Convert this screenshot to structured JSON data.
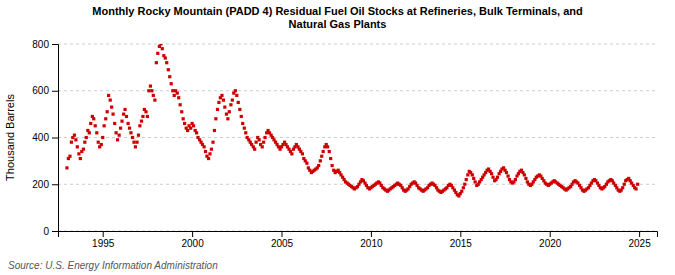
{
  "chart_data": {
    "type": "scatter",
    "title": "Monthly Rocky Mountain (PADD 4) Residual Fuel Oil Stocks at Refineries, Bulk Terminals, and\nNatural Gas Plants",
    "ylabel": "Thousand Barrels",
    "annotations": [
      "Source: U.S. Energy Information Administration"
    ],
    "color": "#cc0000",
    "marker": "square",
    "grid": "y",
    "xlim": [
      1992.5,
      2026.0
    ],
    "xticks": [
      1995,
      2000,
      2005,
      2010,
      2015,
      2020,
      2025
    ],
    "ylim": [
      0,
      800
    ],
    "yticks": [
      0,
      200,
      400,
      600,
      800
    ],
    "x": [
      1993.0,
      1993.08,
      1993.17,
      1993.25,
      1993.33,
      1993.42,
      1993.5,
      1993.58,
      1993.67,
      1993.75,
      1993.83,
      1993.92,
      1994.0,
      1994.08,
      1994.17,
      1994.25,
      1994.33,
      1994.42,
      1994.5,
      1994.58,
      1994.67,
      1994.75,
      1994.83,
      1994.92,
      1995.0,
      1995.08,
      1995.17,
      1995.25,
      1995.33,
      1995.42,
      1995.5,
      1995.58,
      1995.67,
      1995.75,
      1995.83,
      1995.92,
      1996.0,
      1996.08,
      1996.17,
      1996.25,
      1996.33,
      1996.42,
      1996.5,
      1996.58,
      1996.67,
      1996.75,
      1996.83,
      1996.92,
      1997.0,
      1997.08,
      1997.17,
      1997.25,
      1997.33,
      1997.42,
      1997.5,
      1997.58,
      1997.67,
      1997.75,
      1997.83,
      1997.92,
      1998.0,
      1998.08,
      1998.17,
      1998.25,
      1998.33,
      1998.42,
      1998.5,
      1998.58,
      1998.67,
      1998.75,
      1998.83,
      1998.92,
      1999.0,
      1999.08,
      1999.17,
      1999.25,
      1999.33,
      1999.42,
      1999.5,
      1999.58,
      1999.67,
      1999.75,
      1999.83,
      1999.92,
      2000.0,
      2000.08,
      2000.17,
      2000.25,
      2000.33,
      2000.42,
      2000.5,
      2000.58,
      2000.67,
      2000.75,
      2000.83,
      2000.92,
      2001.0,
      2001.08,
      2001.17,
      2001.25,
      2001.33,
      2001.42,
      2001.5,
      2001.58,
      2001.67,
      2001.75,
      2001.83,
      2001.92,
      2002.0,
      2002.08,
      2002.17,
      2002.25,
      2002.33,
      2002.42,
      2002.5,
      2002.58,
      2002.67,
      2002.75,
      2002.83,
      2002.92,
      2003.0,
      2003.08,
      2003.17,
      2003.25,
      2003.33,
      2003.42,
      2003.5,
      2003.58,
      2003.67,
      2003.75,
      2003.83,
      2003.92,
      2004.0,
      2004.08,
      2004.17,
      2004.25,
      2004.33,
      2004.42,
      2004.5,
      2004.58,
      2004.67,
      2004.75,
      2004.83,
      2004.92,
      2005.0,
      2005.08,
      2005.17,
      2005.25,
      2005.33,
      2005.42,
      2005.5,
      2005.58,
      2005.67,
      2005.75,
      2005.83,
      2005.92,
      2006.0,
      2006.08,
      2006.17,
      2006.25,
      2006.33,
      2006.42,
      2006.5,
      2006.58,
      2006.67,
      2006.75,
      2006.83,
      2006.92,
      2007.0,
      2007.08,
      2007.17,
      2007.25,
      2007.33,
      2007.42,
      2007.5,
      2007.58,
      2007.67,
      2007.75,
      2007.83,
      2007.92,
      2008.0,
      2008.08,
      2008.17,
      2008.25,
      2008.33,
      2008.42,
      2008.5,
      2008.58,
      2008.67,
      2008.75,
      2008.83,
      2008.92,
      2009.0,
      2009.08,
      2009.17,
      2009.25,
      2009.33,
      2009.42,
      2009.5,
      2009.58,
      2009.67,
      2009.75,
      2009.83,
      2009.92,
      2010.0,
      2010.08,
      2010.17,
      2010.25,
      2010.33,
      2010.42,
      2010.5,
      2010.58,
      2010.67,
      2010.75,
      2010.83,
      2010.92,
      2011.0,
      2011.08,
      2011.17,
      2011.25,
      2011.33,
      2011.42,
      2011.5,
      2011.58,
      2011.67,
      2011.75,
      2011.83,
      2011.92,
      2012.0,
      2012.08,
      2012.17,
      2012.25,
      2012.33,
      2012.42,
      2012.5,
      2012.58,
      2012.67,
      2012.75,
      2012.83,
      2012.92,
      2013.0,
      2013.08,
      2013.17,
      2013.25,
      2013.33,
      2013.42,
      2013.5,
      2013.58,
      2013.67,
      2013.75,
      2013.83,
      2013.92,
      2014.0,
      2014.08,
      2014.17,
      2014.25,
      2014.33,
      2014.42,
      2014.5,
      2014.58,
      2014.67,
      2014.75,
      2014.83,
      2014.92,
      2015.0,
      2015.08,
      2015.17,
      2015.25,
      2015.33,
      2015.42,
      2015.5,
      2015.58,
      2015.67,
      2015.75,
      2015.83,
      2015.92,
      2016.0,
      2016.08,
      2016.17,
      2016.25,
      2016.33,
      2016.42,
      2016.5,
      2016.58,
      2016.67,
      2016.75,
      2016.83,
      2016.92,
      2017.0,
      2017.08,
      2017.17,
      2017.25,
      2017.33,
      2017.42,
      2017.5,
      2017.58,
      2017.67,
      2017.75,
      2017.83,
      2017.92,
      2018.0,
      2018.08,
      2018.17,
      2018.25,
      2018.33,
      2018.42,
      2018.5,
      2018.58,
      2018.67,
      2018.75,
      2018.83,
      2018.92,
      2019.0,
      2019.08,
      2019.17,
      2019.25,
      2019.33,
      2019.42,
      2019.5,
      2019.58,
      2019.67,
      2019.75,
      2019.83,
      2019.92,
      2020.0,
      2020.08,
      2020.17,
      2020.25,
      2020.33,
      2020.42,
      2020.5,
      2020.58,
      2020.67,
      2020.75,
      2020.83,
      2020.92,
      2021.0,
      2021.08,
      2021.17,
      2021.25,
      2021.33,
      2021.42,
      2021.5,
      2021.58,
      2021.67,
      2021.75,
      2021.83,
      2021.92,
      2022.0,
      2022.08,
      2022.17,
      2022.25,
      2022.33,
      2022.42,
      2022.5,
      2022.58,
      2022.67,
      2022.75,
      2022.83,
      2022.92,
      2023.0,
      2023.08,
      2023.17,
      2023.25,
      2023.33,
      2023.42,
      2023.5,
      2023.58,
      2023.67,
      2023.75,
      2023.83,
      2023.92,
      2024.0,
      2024.08,
      2024.17,
      2024.25,
      2024.33,
      2024.42,
      2024.5,
      2024.58,
      2024.67,
      2024.75,
      2024.83,
      2024.92
    ],
    "values": [
      270,
      310,
      320,
      380,
      400,
      410,
      390,
      360,
      330,
      310,
      340,
      350,
      380,
      400,
      430,
      420,
      460,
      490,
      480,
      450,
      420,
      380,
      360,
      370,
      400,
      450,
      480,
      510,
      580,
      560,
      530,
      500,
      460,
      420,
      390,
      410,
      440,
      470,
      500,
      520,
      490,
      460,
      440,
      420,
      400,
      380,
      360,
      380,
      410,
      450,
      470,
      490,
      520,
      510,
      490,
      600,
      620,
      600,
      580,
      560,
      720,
      760,
      790,
      800,
      780,
      750,
      740,
      720,
      690,
      660,
      630,
      600,
      580,
      600,
      590,
      570,
      540,
      510,
      480,
      460,
      440,
      430,
      450,
      440,
      460,
      450,
      430,
      420,
      400,
      390,
      380,
      370,
      360,
      340,
      320,
      310,
      330,
      350,
      380,
      430,
      480,
      520,
      550,
      570,
      580,
      560,
      530,
      500,
      480,
      510,
      540,
      560,
      590,
      600,
      580,
      550,
      520,
      490,
      460,
      440,
      420,
      400,
      390,
      380,
      370,
      360,
      350,
      380,
      400,
      390,
      370,
      360,
      380,
      400,
      420,
      430,
      420,
      410,
      400,
      390,
      380,
      370,
      360,
      350,
      360,
      370,
      380,
      370,
      360,
      350,
      340,
      330,
      350,
      360,
      370,
      360,
      350,
      340,
      330,
      310,
      300,
      290,
      270,
      260,
      250,
      255,
      260,
      265,
      270,
      280,
      300,
      320,
      340,
      360,
      370,
      360,
      340,
      310,
      280,
      260,
      250,
      255,
      260,
      250,
      240,
      230,
      220,
      210,
      205,
      200,
      195,
      190,
      185,
      180,
      185,
      190,
      200,
      210,
      220,
      215,
      205,
      195,
      185,
      180,
      185,
      190,
      195,
      200,
      205,
      210,
      205,
      195,
      185,
      180,
      175,
      170,
      175,
      180,
      185,
      190,
      195,
      200,
      205,
      200,
      195,
      185,
      175,
      170,
      175,
      180,
      190,
      200,
      205,
      210,
      205,
      195,
      185,
      180,
      175,
      170,
      175,
      180,
      185,
      195,
      200,
      205,
      200,
      195,
      185,
      175,
      170,
      165,
      170,
      175,
      180,
      185,
      195,
      200,
      195,
      185,
      175,
      165,
      155,
      150,
      160,
      170,
      185,
      200,
      220,
      240,
      255,
      250,
      240,
      225,
      210,
      195,
      200,
      210,
      220,
      230,
      240,
      250,
      260,
      265,
      255,
      245,
      230,
      215,
      220,
      230,
      245,
      255,
      265,
      270,
      260,
      250,
      235,
      220,
      210,
      205,
      210,
      220,
      235,
      245,
      255,
      260,
      250,
      240,
      225,
      210,
      200,
      195,
      200,
      210,
      220,
      230,
      235,
      240,
      235,
      225,
      215,
      205,
      200,
      195,
      200,
      205,
      210,
      215,
      210,
      205,
      200,
      195,
      190,
      185,
      180,
      175,
      180,
      185,
      190,
      200,
      210,
      215,
      210,
      205,
      195,
      185,
      175,
      170,
      175,
      180,
      185,
      195,
      205,
      215,
      220,
      215,
      205,
      195,
      185,
      180,
      185,
      190,
      200,
      210,
      215,
      220,
      215,
      205,
      195,
      185,
      175,
      170,
      175,
      185,
      200,
      215,
      220,
      225,
      215,
      205,
      195,
      185,
      180,
      200
    ]
  }
}
